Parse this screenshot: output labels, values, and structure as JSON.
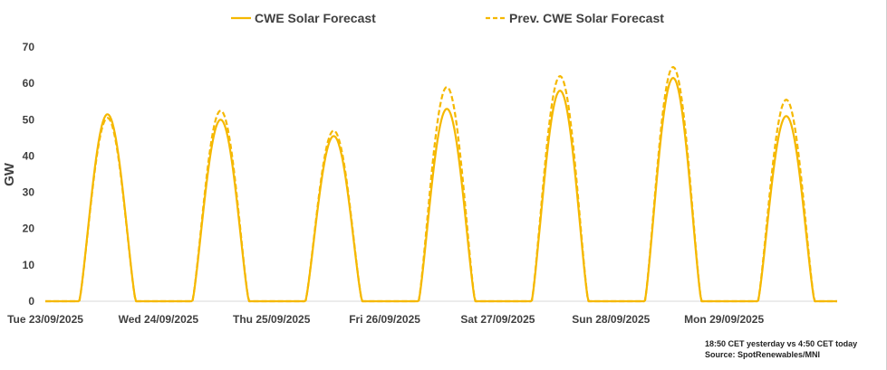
{
  "chart_data": {
    "type": "line",
    "title": "",
    "xlabel": "",
    "ylabel": "GW",
    "ylim": [
      0,
      70
    ],
    "yticks": [
      0,
      10,
      20,
      30,
      40,
      50,
      60,
      70
    ],
    "grid": false,
    "legend": "top-center",
    "days": [
      "Tue 23/09/2025",
      "Wed 24/09/2025",
      "Thu 25/09/2025",
      "Fri 26/09/2025",
      "Sat 27/09/2025",
      "Sun 28/09/2025",
      "Mon 29/09/2025"
    ],
    "series": [
      {
        "name": "CWE Solar Forecast",
        "style": "solid",
        "color": "#F5B800",
        "daily_peak_gw": [
          51.5,
          50,
          45.5,
          53,
          58,
          61.5,
          51
        ]
      },
      {
        "name": "Prev. CWE Solar Forecast",
        "style": "dashed",
        "color": "#F5B800",
        "daily_peak_gw": [
          50.5,
          52.5,
          47,
          59,
          62,
          64.5,
          55.5
        ]
      }
    ]
  },
  "notes": {
    "line1": "18:50 CET yesterday vs  4:50 CET today",
    "line2": "Source: SpotRenewables/MNI"
  }
}
